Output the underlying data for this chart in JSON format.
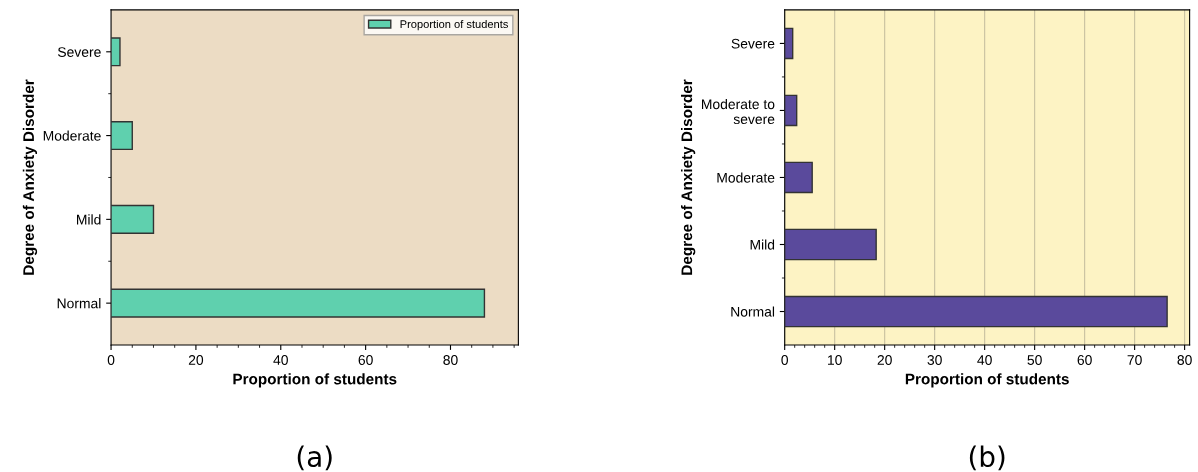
{
  "chart_data": [
    {
      "type": "bar",
      "orientation": "horizontal",
      "xlabel": "Proportion of students",
      "ylabel": "Degree of Anxiety Disorder",
      "categories": [
        "Severe",
        "Moderate",
        "Mild",
        "Normal"
      ],
      "series": [
        {
          "name": "Proportion of students",
          "color": "#5fd0ae",
          "values": [
            2.1,
            5,
            10,
            88
          ]
        }
      ],
      "xlim": [
        0,
        96
      ],
      "xticks": [
        0,
        20,
        40,
        60,
        80
      ],
      "grid": false,
      "legend": "top right",
      "annotations": [
        "(a)"
      ]
    },
    {
      "type": "bar",
      "orientation": "horizontal",
      "xlabel": "Proportion of students",
      "ylabel": "Degree of Anxiety Disorder",
      "categories": [
        "Severe",
        "Moderate to\nsevere",
        "Moderate",
        "Mild",
        "Normal"
      ],
      "series": [
        {
          "color": "#5a4a9c",
          "values": [
            1.6,
            2.4,
            5.5,
            18.3,
            76.5
          ]
        }
      ],
      "xlim": [
        0,
        81
      ],
      "xticks": [
        0,
        10,
        20,
        30,
        40,
        50,
        60,
        70,
        80
      ],
      "grid": "x",
      "annotations": [
        "(b)"
      ]
    }
  ]
}
